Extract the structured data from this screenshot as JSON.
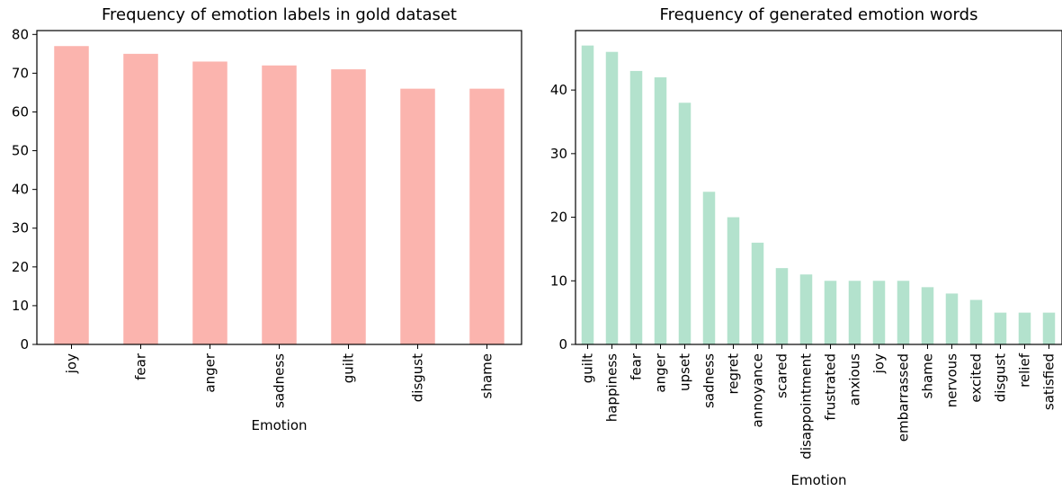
{
  "chart_data": [
    {
      "type": "bar",
      "title": "Frequency of emotion labels in gold dataset",
      "xlabel": "Emotion",
      "ylabel": "",
      "categories": [
        "joy",
        "fear",
        "anger",
        "sadness",
        "guilt",
        "disgust",
        "shame"
      ],
      "values": [
        77,
        75,
        73,
        72,
        71,
        66,
        66
      ],
      "ylim": [
        0,
        81
      ],
      "yticks": [
        0,
        10,
        20,
        30,
        40,
        50,
        60,
        70,
        80
      ],
      "color": "#fbb4ae",
      "grid": false,
      "legend": "none"
    },
    {
      "type": "bar",
      "title": "Frequency of generated emotion words",
      "xlabel": "Emotion",
      "ylabel": "",
      "categories": [
        "guilt",
        "happiness",
        "fear",
        "anger",
        "upset",
        "sadness",
        "regret",
        "annoyance",
        "scared",
        "disappointment",
        "frustrated",
        "anxious",
        "joy",
        "embarrassed",
        "shame",
        "nervous",
        "excited",
        "disgust",
        "relief",
        "satisfied"
      ],
      "values": [
        47,
        46,
        43,
        42,
        38,
        24,
        20,
        16,
        12,
        11,
        10,
        10,
        10,
        10,
        9,
        8,
        7,
        5,
        5,
        5
      ],
      "ylim": [
        0,
        49.35
      ],
      "yticks": [
        0,
        10,
        20,
        30,
        40
      ],
      "color": "#b3e2cd",
      "grid": false,
      "legend": "none"
    }
  ]
}
